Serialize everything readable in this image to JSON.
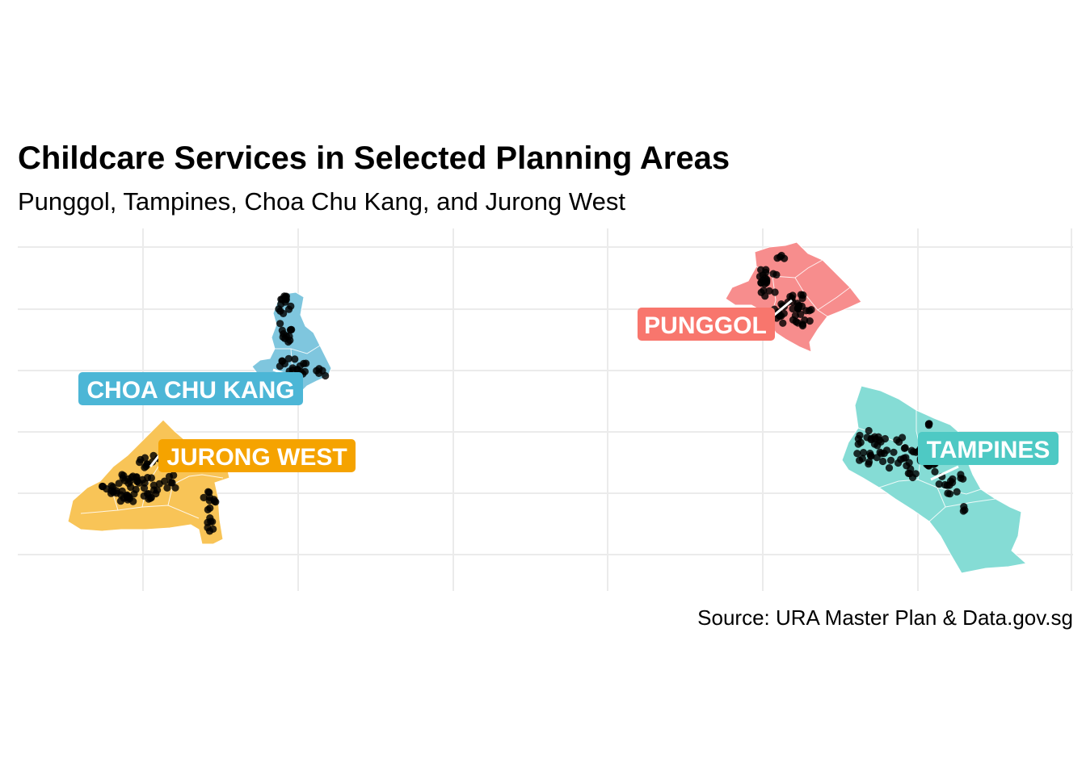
{
  "title": "Childcare Services in Selected Planning Areas",
  "subtitle": "Punggol, Tampines, Choa Chu Kang, and Jurong West",
  "caption": "Source: URA Master Plan & Data.gov.sg",
  "colors": {
    "grid": "#ebebeb",
    "boundary": "#ffffff",
    "point": "#000000"
  },
  "areas": [
    {
      "id": "punggol",
      "label": "PUNGGOL",
      "fill": "#f78d8d",
      "label_bg": "#f8766d"
    },
    {
      "id": "tampines",
      "label": "TAMPINES",
      "fill": "#85dcd5",
      "label_bg": "#4ec9c4"
    },
    {
      "id": "choa-chu-kang",
      "label": "CHOA CHU KANG",
      "fill": "#7fc6de",
      "label_bg": "#4cb6d6"
    },
    {
      "id": "jurong-west",
      "label": "JURONG WEST",
      "fill": "#f8c457",
      "label_bg": "#f5a300"
    }
  ]
}
